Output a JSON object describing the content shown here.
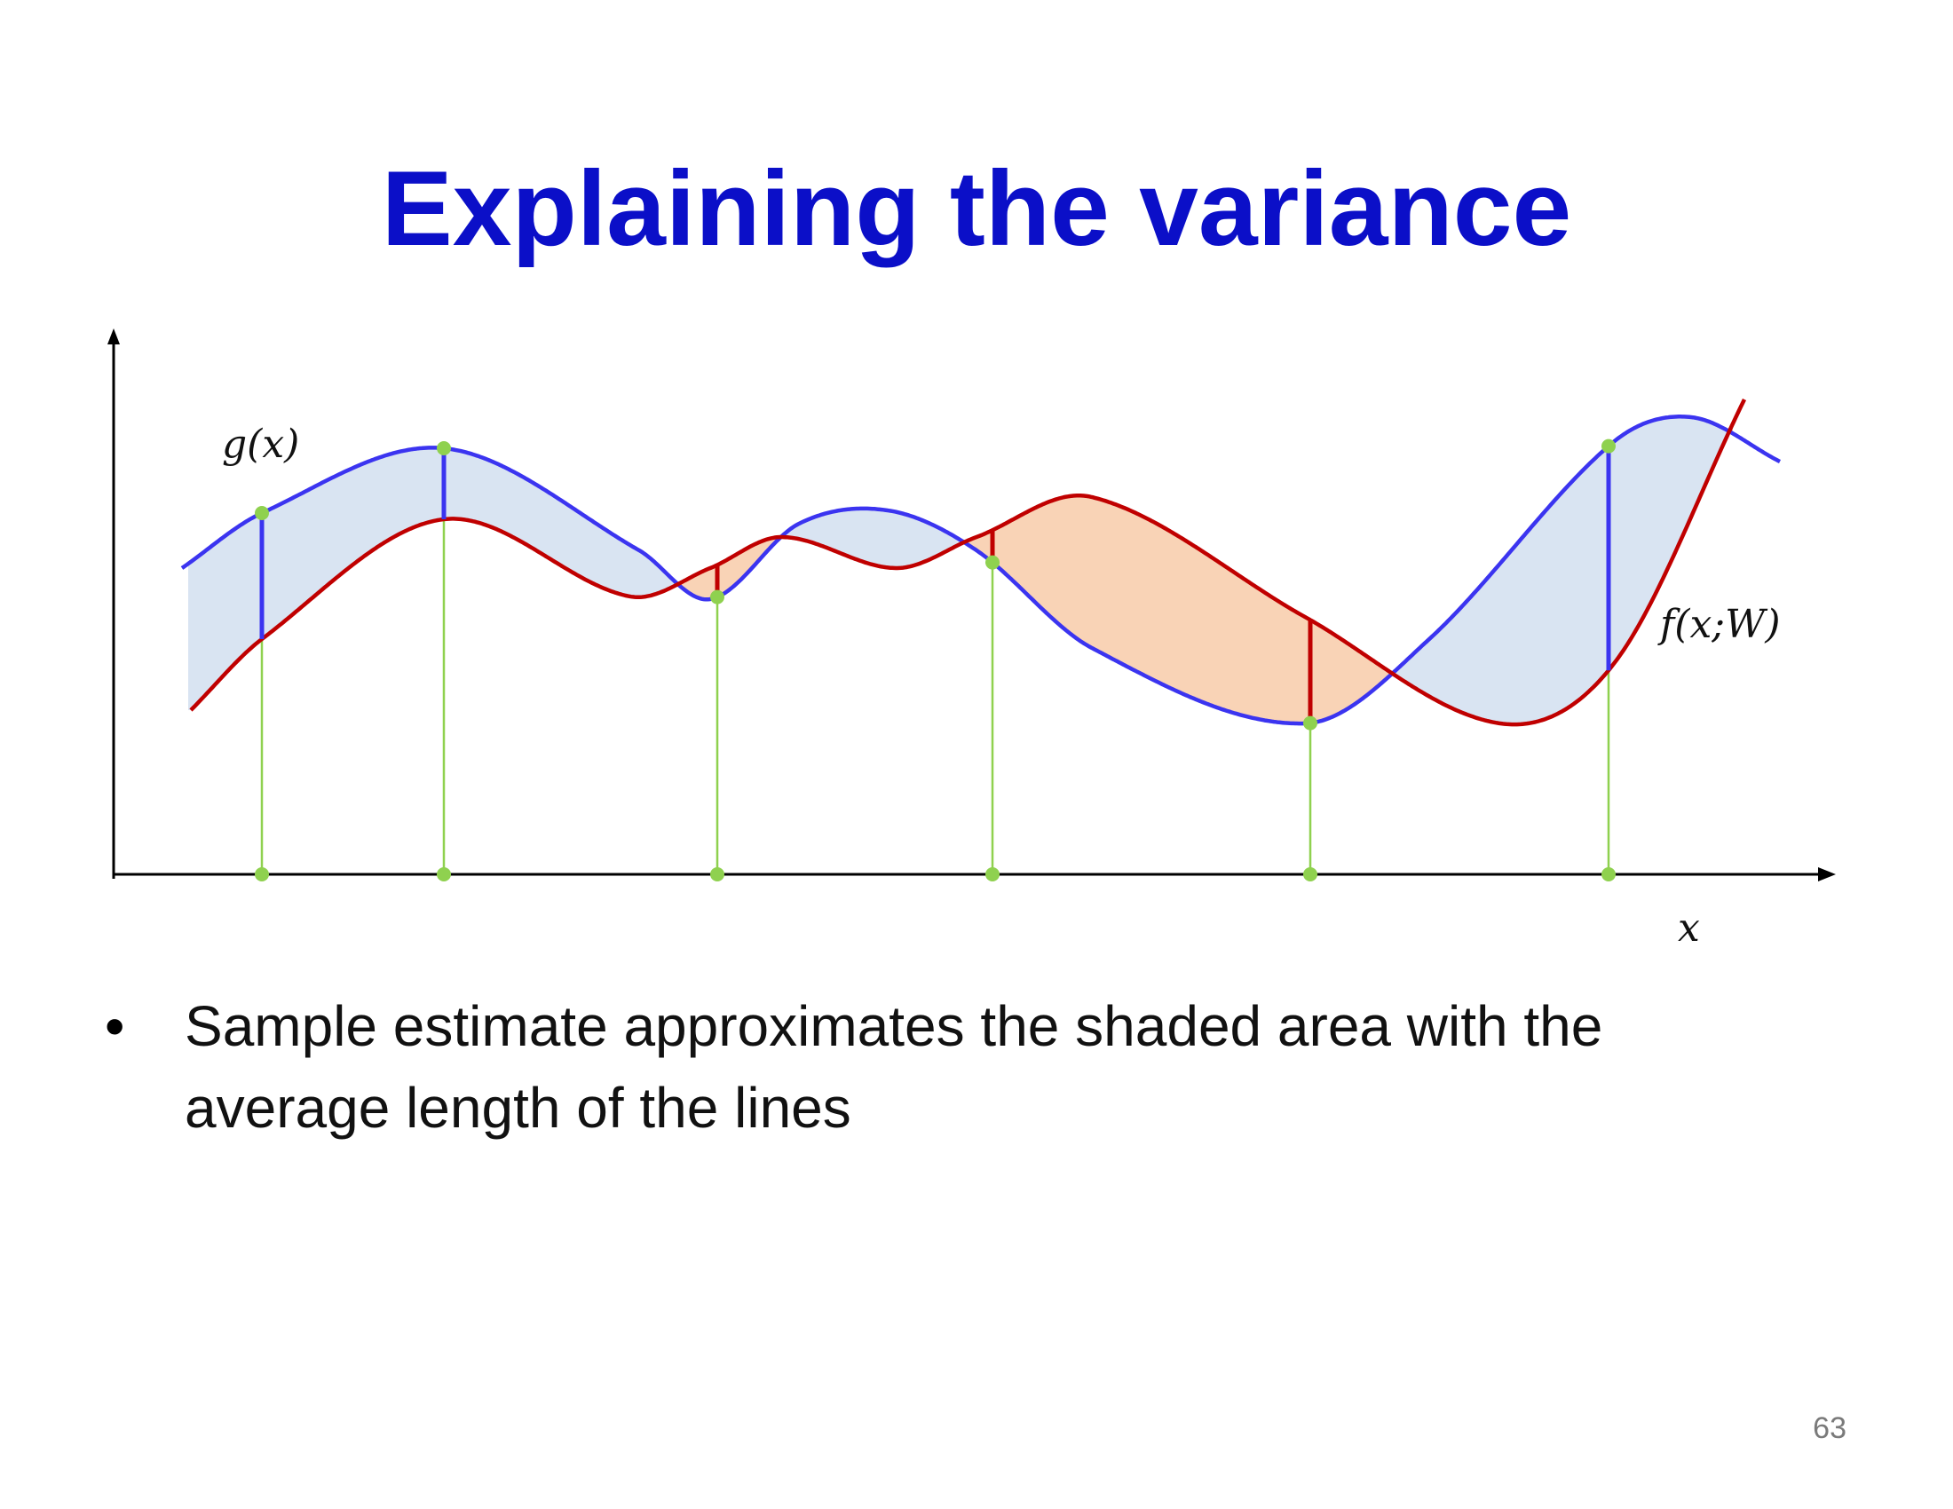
{
  "title": "Explaining the variance",
  "diagram": {
    "label_g": "g(x)",
    "label_f": "f(x;W)",
    "label_x": "x",
    "colors": {
      "g_curve": "#3b34f0",
      "f_curve": "#c00000",
      "shade_g_above": "#d9e4f2",
      "shade_f_above": "#f9d3b6",
      "sample_marker": "#8fd14f",
      "axis": "#000000"
    }
  },
  "bullets": [
    "Sample estimate approximates the shaded area with the average length of the lines"
  ],
  "page_number": "63"
}
